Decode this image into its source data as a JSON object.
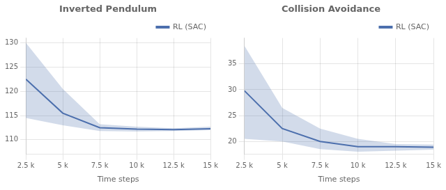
{
  "chart_data": [
    {
      "type": "line",
      "title": "Inverted Pendulum",
      "xlabel": "Time steps",
      "x": [
        2500,
        5000,
        7500,
        10000,
        12500,
        15000
      ],
      "series": [
        {
          "name": "RL (SAC)",
          "color": "#4c6fad",
          "values": [
            122.5,
            115.5,
            112.5,
            112.2,
            112.1,
            112.3
          ],
          "upper": [
            130.0,
            120.5,
            113.2,
            112.7,
            112.4,
            112.7
          ],
          "lower": [
            114.5,
            113.0,
            111.8,
            111.7,
            111.8,
            112.0
          ]
        }
      ],
      "xlim": [
        2500,
        15000
      ],
      "xticks": [
        {
          "value": 2500,
          "label": "2.5 k"
        },
        {
          "value": 5000,
          "label": "5 k"
        },
        {
          "value": 7500,
          "label": "7.5 k"
        },
        {
          "value": 10000,
          "label": "10 k"
        },
        {
          "value": 12500,
          "label": "12.5 k"
        },
        {
          "value": 15000,
          "label": "15 k"
        }
      ],
      "ylim": [
        107.0,
        131.0
      ],
      "yticks": [
        110,
        115,
        120,
        125,
        130
      ],
      "grid": true,
      "legend": "upper right"
    },
    {
      "type": "line",
      "title": "Collision Avoidance",
      "xlabel": "Time steps",
      "x": [
        2500,
        5000,
        7500,
        10000,
        12500,
        15000
      ],
      "series": [
        {
          "name": "RL (SAC)",
          "color": "#4c6fad",
          "values": [
            29.8,
            22.5,
            20.0,
            19.0,
            19.0,
            18.9
          ],
          "upper": [
            38.5,
            26.5,
            22.5,
            20.5,
            19.5,
            19.4
          ],
          "lower": [
            20.5,
            20.0,
            18.5,
            18.0,
            18.2,
            18.4
          ]
        }
      ],
      "xlim": [
        2500,
        15000
      ],
      "xticks": [
        {
          "value": 2500,
          "label": "2.5 k"
        },
        {
          "value": 5000,
          "label": "5 k"
        },
        {
          "value": 7500,
          "label": "7.5 k"
        },
        {
          "value": 10000,
          "label": "10 k"
        },
        {
          "value": 12500,
          "label": "12.5 k"
        },
        {
          "value": 15000,
          "label": "15 k"
        }
      ],
      "ylim": [
        17.5,
        40.0
      ],
      "yticks": [
        20,
        25,
        30,
        35
      ],
      "grid": true,
      "legend": "upper right"
    }
  ]
}
